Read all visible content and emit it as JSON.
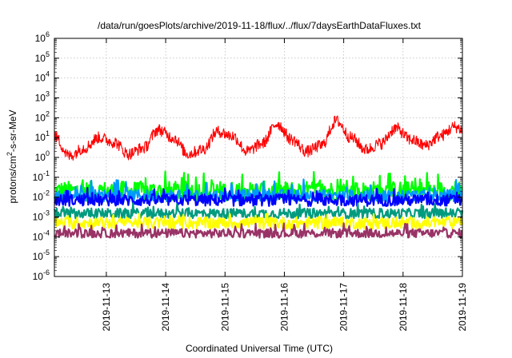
{
  "chart_data": {
    "type": "line",
    "title": "/data/run/goesPlots/archive/2019-11-18/flux/../flux/7daysEarthDataFluxes.txt",
    "xlabel": "Coordinated Universal Time (UTC)",
    "ylabel_parts": [
      "protons/cm",
      "2",
      "-s-sr-MeV"
    ],
    "x_range": [
      "2019-11-12T03:00",
      "2019-11-19T00:00"
    ],
    "x_ticks": [
      "2019-11-13",
      "2019-11-14",
      "2019-11-15",
      "2019-11-16",
      "2019-11-17",
      "2019-11-18",
      "2019-11-19"
    ],
    "y_scale": "log",
    "ylim": [
      1e-06,
      1000000.0
    ],
    "y_tick_exponents": [
      -6,
      -5,
      -4,
      -3,
      -2,
      -1,
      0,
      1,
      2,
      3,
      4,
      5,
      6
    ],
    "grid": true,
    "series": [
      {
        "color": "#ff0000",
        "x": [
          "2019-11-12T03:00",
          "2019-11-12T09:00",
          "2019-11-12T15:00",
          "2019-11-12T21:00",
          "2019-11-13T03:00",
          "2019-11-13T09:00",
          "2019-11-13T15:00",
          "2019-11-13T21:00",
          "2019-11-14T03:00",
          "2019-11-14T09:00",
          "2019-11-14T15:00",
          "2019-11-14T21:00",
          "2019-11-15T03:00",
          "2019-11-15T09:00",
          "2019-11-15T15:00",
          "2019-11-15T21:00",
          "2019-11-16T03:00",
          "2019-11-16T09:00",
          "2019-11-16T15:00",
          "2019-11-16T21:00",
          "2019-11-17T03:00",
          "2019-11-17T09:00",
          "2019-11-17T15:00",
          "2019-11-17T21:00",
          "2019-11-18T03:00",
          "2019-11-18T09:00",
          "2019-11-18T15:00",
          "2019-11-18T21:00",
          "2019-11-19T00:00"
        ],
        "y": [
          12,
          1.2,
          3,
          10,
          6,
          1.5,
          3,
          25,
          10,
          1.5,
          2.5,
          20,
          12,
          2,
          5,
          50,
          8,
          2,
          4,
          70,
          10,
          2.5,
          5,
          30,
          8,
          4,
          12,
          35,
          25
        ],
        "noise": 0.6
      },
      {
        "color": "#00ff00",
        "level": 0.02,
        "noise": 1.0,
        "spike_max": 0.2
      },
      {
        "color": "#0099ff",
        "level": 0.012,
        "noise": 0.6,
        "spike_max": 0.08
      },
      {
        "color": "#0000ff",
        "level": 0.007,
        "noise": 0.6,
        "spike_max": 0.03
      },
      {
        "color": "#009b7f",
        "level": 0.0015,
        "noise": 0.5,
        "spike_max": 0.005
      },
      {
        "color": "#ffff00",
        "level": 0.0005,
        "noise": 0.6,
        "spike_max": 0.0015
      },
      {
        "color": "#993366",
        "level": 0.00015,
        "noise": 0.45,
        "spike_max": 0.0005
      }
    ]
  }
}
